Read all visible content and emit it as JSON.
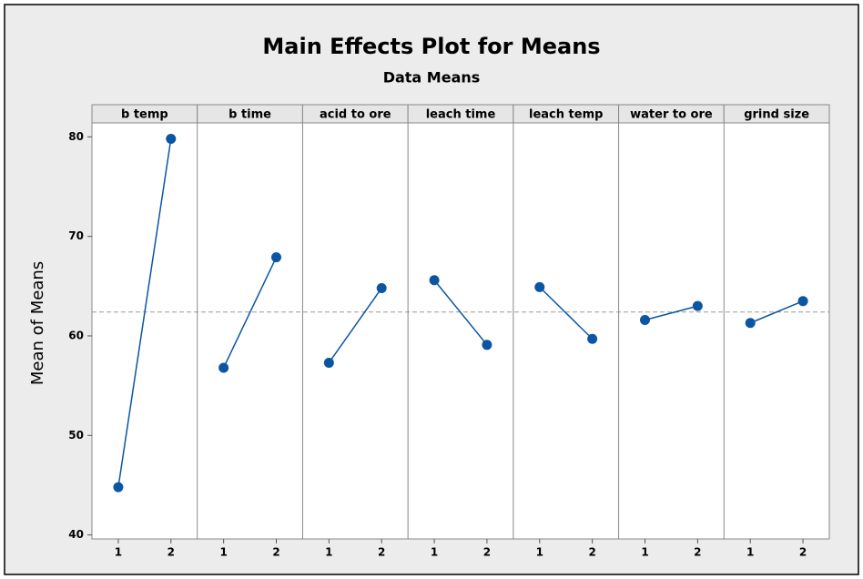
{
  "chart_data": {
    "type": "line",
    "title": "Main Effects Plot for Means",
    "subtitle": "Data Means",
    "ylabel": "Mean of Means",
    "categories": [
      "1",
      "2"
    ],
    "color": "#0b55a3",
    "series": [
      {
        "name": "b temp",
        "values": [
          44.8,
          79.8
        ]
      },
      {
        "name": "b time",
        "values": [
          56.8,
          67.9
        ]
      },
      {
        "name": "acid to ore",
        "values": [
          57.3,
          64.8
        ]
      },
      {
        "name": "leach time",
        "values": [
          65.6,
          59.1
        ]
      },
      {
        "name": "leach temp",
        "values": [
          64.9,
          59.7
        ]
      },
      {
        "name": "water to ore",
        "values": [
          61.6,
          63.0
        ]
      },
      {
        "name": "grind size",
        "values": [
          61.3,
          63.5
        ]
      }
    ],
    "reference_line": 62.4,
    "ylim": [
      39.6,
      81.4
    ],
    "yticks": [
      40,
      50,
      60,
      70,
      80
    ]
  }
}
